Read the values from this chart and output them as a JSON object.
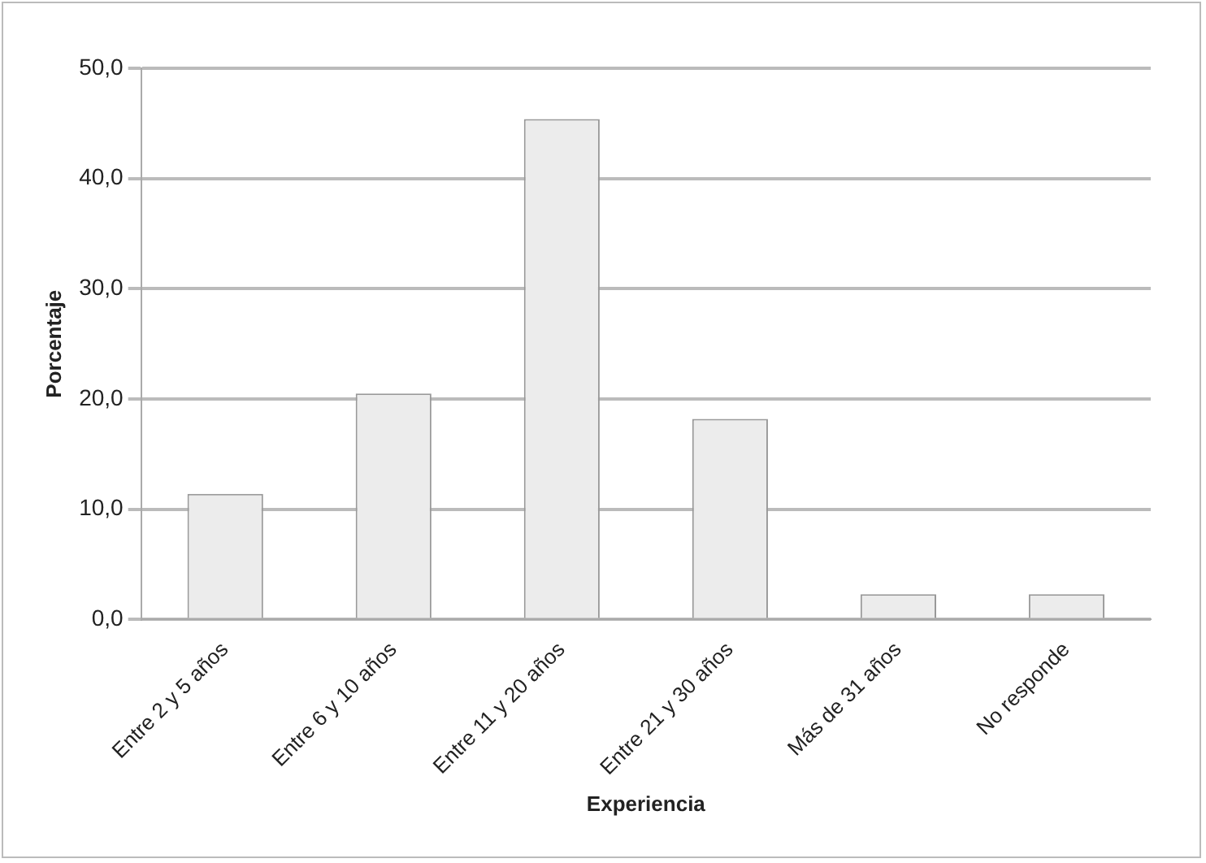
{
  "chart_data": {
    "type": "bar",
    "xlabel": "Experiencia",
    "ylabel": "Porcentaje",
    "categories": [
      "Entre 2 y 5 años",
      "Entre 6 y 10 años",
      "Entre 11 y 20 años",
      "Entre 21 y 30 años",
      "Más de 31 años",
      "No responde"
    ],
    "values": [
      11.4,
      20.5,
      45.4,
      18.2,
      2.3,
      2.3
    ],
    "color": "#ececec",
    "ylim": [
      0,
      50
    ],
    "yticks": [
      {
        "value": 0,
        "label": "0,0"
      },
      {
        "value": 10,
        "label": "10,0"
      },
      {
        "value": 20,
        "label": "20,0"
      },
      {
        "value": 30,
        "label": "30,0"
      },
      {
        "value": 40,
        "label": "40,0"
      },
      {
        "value": 50,
        "label": "50,0"
      }
    ],
    "grid": "y",
    "legend": false
  }
}
